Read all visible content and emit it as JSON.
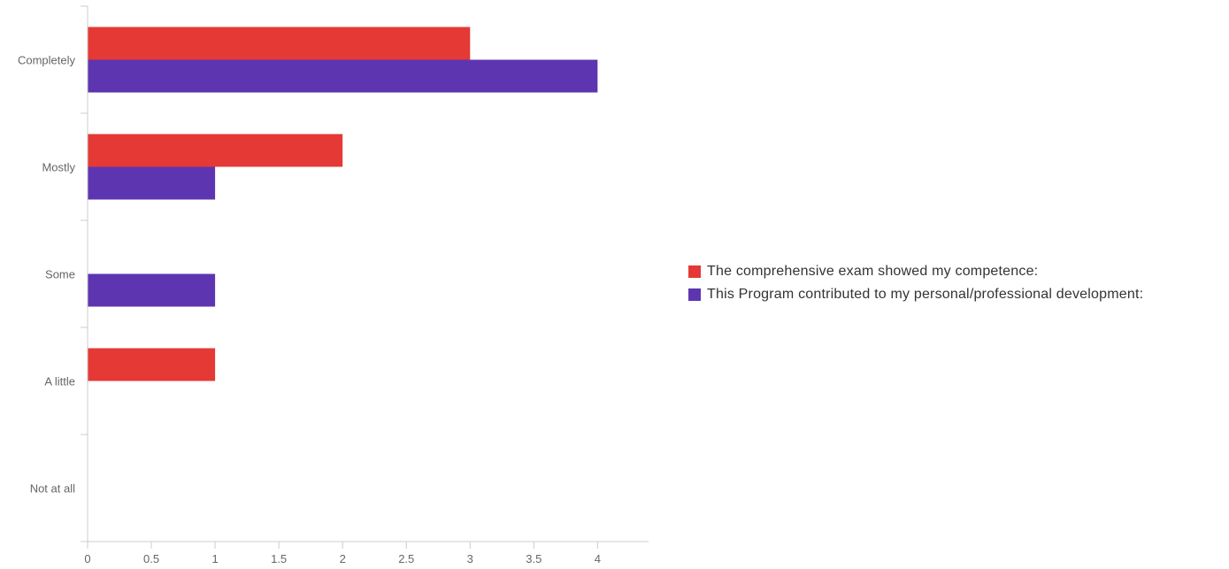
{
  "chart_data": {
    "type": "bar",
    "orientation": "horizontal",
    "categories": [
      "Completely",
      "Mostly",
      "Some",
      "A little",
      "Not at all"
    ],
    "series": [
      {
        "name": "The comprehensive exam showed my competence:",
        "color": "#e53935",
        "values": [
          3,
          2,
          0,
          1,
          0
        ]
      },
      {
        "name": "This Program contributed to my personal/professional development:",
        "color": "#5e35b1",
        "values": [
          4,
          1,
          1,
          0,
          0
        ]
      }
    ],
    "xticks": [
      "0",
      "0.5",
      "1",
      "1.5",
      "2",
      "2.5",
      "3",
      "3.5",
      "4"
    ],
    "xlim": [
      0,
      4.4
    ],
    "title": "",
    "xlabel": "",
    "ylabel": "",
    "grid": false,
    "legend_position": "right"
  }
}
